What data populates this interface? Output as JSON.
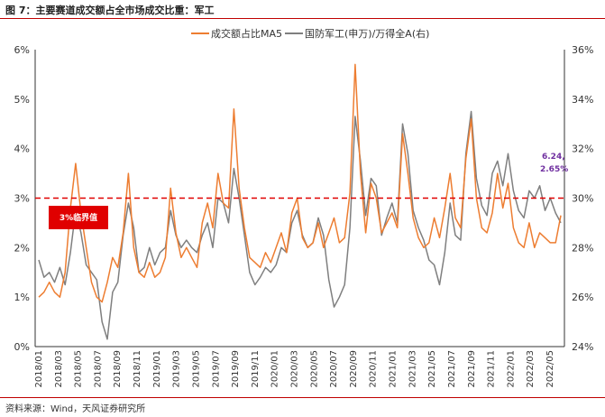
{
  "figure": {
    "title": "图 7：主要赛道成交额占全市场成交比重：军工",
    "source": "资料来源：Wind，天风证券研究所"
  },
  "colors": {
    "series1": "#ed7d31",
    "series2": "#7f7f7f",
    "threshold": "#e00000",
    "annotation": "#7030a0",
    "rule": "#c00000"
  },
  "chart_data": {
    "type": "line",
    "title": "",
    "xlabel": "",
    "ylabel": "",
    "y_left": {
      "ticks": [
        "0%",
        "1%",
        "2%",
        "3%",
        "4%",
        "5%",
        "6%"
      ],
      "range": [
        0,
        6
      ]
    },
    "y_right": {
      "ticks": [
        "24%",
        "26%",
        "28%",
        "30%",
        "32%",
        "34%",
        "36%"
      ],
      "range": [
        24,
        36
      ]
    },
    "x_ticks": [
      "2018/01",
      "2018/03",
      "2018/05",
      "2018/07",
      "2018/09",
      "2018/11",
      "2019/01",
      "2019/03",
      "2019/05",
      "2019/07",
      "2019/09",
      "2019/11",
      "2020/01",
      "2020/03",
      "2020/05",
      "2020/07",
      "2020/09",
      "2020/11",
      "2021/01",
      "2021/03",
      "2021/05",
      "2021/07",
      "2021/09",
      "2021/11",
      "2022/01",
      "2022/03",
      "2022/05"
    ],
    "legend": {
      "placement": "top-center"
    },
    "grid": false,
    "series": [
      {
        "name": "成交额占比MA5",
        "axis": "left",
        "color": "#ed7d31",
        "points": [
          [
            0,
            1.0
          ],
          [
            1,
            1.1
          ],
          [
            2,
            1.3
          ],
          [
            3,
            1.1
          ],
          [
            4,
            1.0
          ],
          [
            5,
            1.5
          ],
          [
            6,
            2.8
          ],
          [
            7,
            3.7
          ],
          [
            8,
            2.7
          ],
          [
            9,
            2.0
          ],
          [
            10,
            1.3
          ],
          [
            11,
            1.0
          ],
          [
            12,
            0.9
          ],
          [
            13,
            1.3
          ],
          [
            14,
            1.8
          ],
          [
            15,
            1.6
          ],
          [
            16,
            2.3
          ],
          [
            17,
            3.5
          ],
          [
            18,
            2.0
          ],
          [
            19,
            1.5
          ],
          [
            20,
            1.4
          ],
          [
            21,
            1.7
          ],
          [
            22,
            1.4
          ],
          [
            23,
            1.5
          ],
          [
            24,
            1.8
          ],
          [
            25,
            3.2
          ],
          [
            26,
            2.3
          ],
          [
            27,
            1.8
          ],
          [
            28,
            2.0
          ],
          [
            29,
            1.8
          ],
          [
            30,
            1.6
          ],
          [
            31,
            2.5
          ],
          [
            32,
            2.9
          ],
          [
            33,
            2.4
          ],
          [
            34,
            3.5
          ],
          [
            35,
            2.9
          ],
          [
            36,
            2.8
          ],
          [
            37,
            4.8
          ],
          [
            38,
            3.2
          ],
          [
            39,
            2.4
          ],
          [
            40,
            1.8
          ],
          [
            41,
            1.7
          ],
          [
            42,
            1.6
          ],
          [
            43,
            1.9
          ],
          [
            44,
            1.7
          ],
          [
            45,
            2.0
          ],
          [
            46,
            2.3
          ],
          [
            47,
            1.9
          ],
          [
            48,
            2.7
          ],
          [
            49,
            3.0
          ],
          [
            50,
            2.2
          ],
          [
            51,
            2.0
          ],
          [
            52,
            2.1
          ],
          [
            53,
            2.5
          ],
          [
            54,
            2.0
          ],
          [
            55,
            2.3
          ],
          [
            56,
            2.6
          ],
          [
            57,
            2.1
          ],
          [
            58,
            2.2
          ],
          [
            59,
            3.1
          ],
          [
            60,
            5.7
          ],
          [
            61,
            3.5
          ],
          [
            62,
            2.3
          ],
          [
            63,
            3.3
          ],
          [
            64,
            3.0
          ],
          [
            65,
            2.3
          ],
          [
            66,
            2.5
          ],
          [
            67,
            2.7
          ],
          [
            68,
            2.4
          ],
          [
            69,
            4.3
          ],
          [
            70,
            3.5
          ],
          [
            71,
            2.6
          ],
          [
            72,
            2.2
          ],
          [
            73,
            2.0
          ],
          [
            74,
            2.1
          ],
          [
            75,
            2.6
          ],
          [
            76,
            2.2
          ],
          [
            77,
            2.8
          ],
          [
            78,
            3.5
          ],
          [
            79,
            2.6
          ],
          [
            80,
            2.4
          ],
          [
            81,
            3.8
          ],
          [
            82,
            4.6
          ],
          [
            83,
            3.0
          ],
          [
            84,
            2.4
          ],
          [
            85,
            2.3
          ],
          [
            86,
            2.7
          ],
          [
            87,
            3.5
          ],
          [
            88,
            2.8
          ],
          [
            89,
            3.3
          ],
          [
            90,
            2.4
          ],
          [
            91,
            2.1
          ],
          [
            92,
            2.0
          ],
          [
            93,
            2.5
          ],
          [
            94,
            2.0
          ],
          [
            95,
            2.3
          ],
          [
            96,
            2.2
          ],
          [
            97,
            2.1
          ],
          [
            98,
            2.1
          ],
          [
            99,
            2.65
          ]
        ]
      },
      {
        "name": "国防军工(申万)/万得全A(右)",
        "axis": "right",
        "color": "#7f7f7f",
        "points": [
          [
            0,
            27.5
          ],
          [
            1,
            26.8
          ],
          [
            2,
            27.0
          ],
          [
            3,
            26.6
          ],
          [
            4,
            27.2
          ],
          [
            5,
            26.5
          ],
          [
            6,
            27.8
          ],
          [
            7,
            29.5
          ],
          [
            8,
            28.6
          ],
          [
            9,
            27.3
          ],
          [
            10,
            27.0
          ],
          [
            11,
            26.7
          ],
          [
            12,
            25.0
          ],
          [
            13,
            24.3
          ],
          [
            14,
            26.2
          ],
          [
            15,
            26.6
          ],
          [
            16,
            28.5
          ],
          [
            17,
            29.8
          ],
          [
            18,
            28.8
          ],
          [
            19,
            27.0
          ],
          [
            20,
            27.2
          ],
          [
            21,
            28.0
          ],
          [
            22,
            27.3
          ],
          [
            23,
            27.8
          ],
          [
            24,
            28.0
          ],
          [
            25,
            29.5
          ],
          [
            26,
            28.5
          ],
          [
            27,
            28.0
          ],
          [
            28,
            28.3
          ],
          [
            29,
            28.0
          ],
          [
            30,
            27.8
          ],
          [
            31,
            28.5
          ],
          [
            32,
            29.0
          ],
          [
            33,
            28.0
          ],
          [
            34,
            30.0
          ],
          [
            35,
            29.8
          ],
          [
            36,
            29.0
          ],
          [
            37,
            31.2
          ],
          [
            38,
            30.0
          ],
          [
            39,
            28.5
          ],
          [
            40,
            27.0
          ],
          [
            41,
            26.5
          ],
          [
            42,
            26.8
          ],
          [
            43,
            27.2
          ],
          [
            44,
            27.0
          ],
          [
            45,
            27.3
          ],
          [
            46,
            28.0
          ],
          [
            47,
            27.8
          ],
          [
            48,
            29.0
          ],
          [
            49,
            29.5
          ],
          [
            50,
            28.5
          ],
          [
            51,
            28.0
          ],
          [
            52,
            28.2
          ],
          [
            53,
            29.2
          ],
          [
            54,
            28.5
          ],
          [
            55,
            26.7
          ],
          [
            56,
            25.6
          ],
          [
            57,
            26.0
          ],
          [
            58,
            26.5
          ],
          [
            59,
            28.8
          ],
          [
            60,
            33.3
          ],
          [
            61,
            31.5
          ],
          [
            62,
            29.3
          ],
          [
            63,
            30.8
          ],
          [
            64,
            30.5
          ],
          [
            65,
            28.5
          ],
          [
            66,
            29.2
          ],
          [
            67,
            29.8
          ],
          [
            68,
            29.0
          ],
          [
            69,
            33.0
          ],
          [
            70,
            31.8
          ],
          [
            71,
            29.5
          ],
          [
            72,
            28.8
          ],
          [
            73,
            28.3
          ],
          [
            74,
            27.5
          ],
          [
            75,
            27.3
          ],
          [
            76,
            26.5
          ],
          [
            77,
            27.8
          ],
          [
            78,
            29.8
          ],
          [
            79,
            28.5
          ],
          [
            80,
            28.3
          ],
          [
            81,
            31.8
          ],
          [
            82,
            33.5
          ],
          [
            83,
            30.8
          ],
          [
            84,
            29.7
          ],
          [
            85,
            29.3
          ],
          [
            86,
            31.0
          ],
          [
            87,
            31.5
          ],
          [
            88,
            30.5
          ],
          [
            89,
            31.8
          ],
          [
            90,
            30.3
          ],
          [
            91,
            29.5
          ],
          [
            92,
            29.2
          ],
          [
            93,
            30.3
          ],
          [
            94,
            30.0
          ],
          [
            95,
            30.5
          ],
          [
            96,
            29.5
          ],
          [
            97,
            30.0
          ],
          [
            98,
            29.4
          ],
          [
            99,
            29.0
          ]
        ]
      }
    ],
    "threshold": {
      "value": 3,
      "label": "3%临界值"
    },
    "annotation": {
      "date": "6.24,",
      "value": "2.65%"
    }
  }
}
